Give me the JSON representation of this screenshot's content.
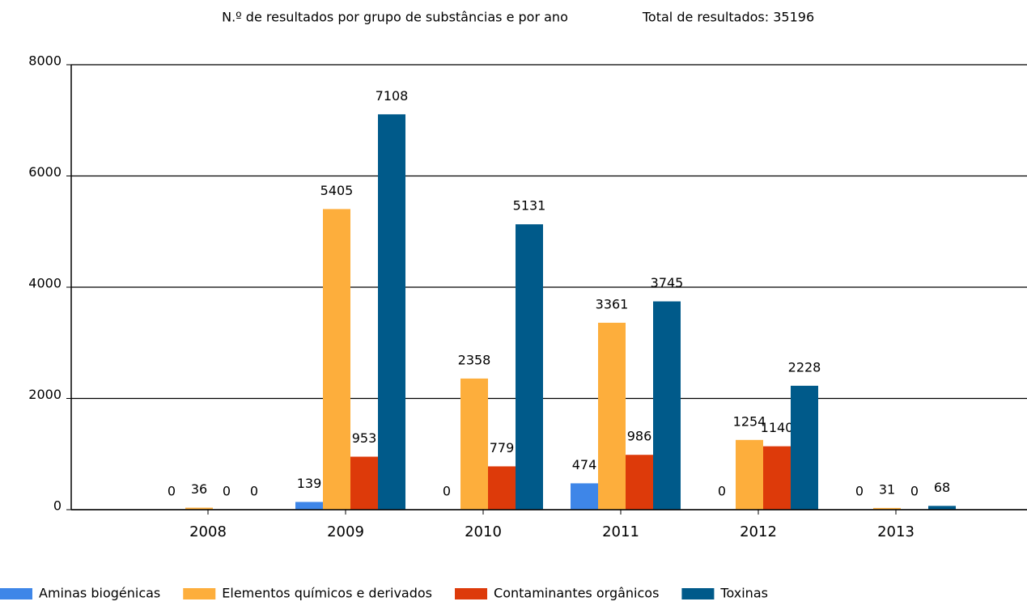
{
  "chart_data": {
    "type": "bar",
    "title": "N.º de resultados por grupo de substâncias e por ano",
    "subtitle": "Total de resultados: 35196",
    "categories": [
      "2008",
      "2009",
      "2010",
      "2011",
      "2012",
      "2013"
    ],
    "series": [
      {
        "name": "Aminas biogénicas",
        "color": "#3e86e8",
        "values": [
          0,
          139,
          0,
          474,
          0,
          0
        ]
      },
      {
        "name": "Elementos químicos e derivados",
        "color": "#fdae3c",
        "values": [
          36,
          5405,
          2358,
          3361,
          1254,
          31
        ]
      },
      {
        "name": "Contaminantes orgânicos",
        "color": "#dd3a0a",
        "values": [
          0,
          953,
          779,
          986,
          1140,
          0
        ]
      },
      {
        "name": "Toxinas",
        "color": "#005a8a",
        "values": [
          0,
          7108,
          5131,
          3745,
          2228,
          68
        ]
      }
    ],
    "ylim": [
      0,
      8000
    ],
    "yticks": [
      0,
      2000,
      4000,
      6000,
      8000
    ],
    "grid": true
  }
}
